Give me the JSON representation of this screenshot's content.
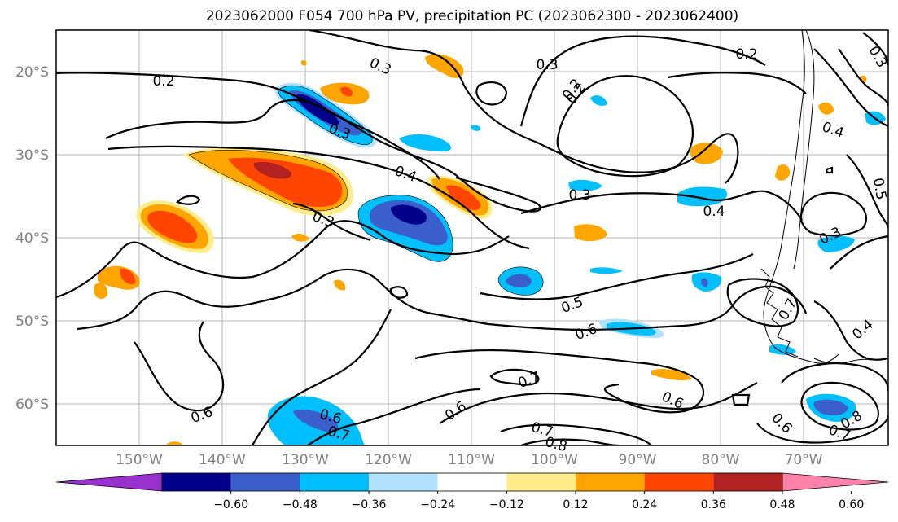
{
  "title": "2023062000 F054 700 hPa PV, precipitation PC (2023062300 - 2023062400)",
  "lat_labels": [
    "20°S",
    "30°S",
    "40°S",
    "50°S",
    "60°S"
  ],
  "lon_labels": [
    "150°W",
    "140°W",
    "130°W",
    "120°W",
    "110°W",
    "100°W",
    "90°W",
    "80°W",
    "70°W"
  ],
  "contour_labels": [
    "0.2",
    "0.3",
    "0.3",
    "0.2",
    "0.2",
    "0.3",
    "0.4",
    "0.3",
    "0.3",
    "0.4",
    "0.3",
    "0.4",
    "0.5",
    "0.3",
    "0.5",
    "0.6",
    "0.7",
    "0.4",
    "0.7",
    "0.6",
    "0.6",
    "0.6",
    "0.6",
    "0.7",
    "0.7",
    "0.8",
    "0.6",
    "0.7",
    "0.8",
    "0.2"
  ],
  "colorbar": {
    "tick_labels": [
      "−0.60",
      "−0.48",
      "−0.36",
      "−0.24",
      "−0.12",
      "0.12",
      "0.24",
      "0.36",
      "0.48",
      "0.60"
    ],
    "colors": [
      "#9932cc",
      "#00008b",
      "#3a5fcd",
      "#00bfff",
      "#b0e2ff",
      "#ffffff",
      "#ffec8b",
      "#ffa500",
      "#ff4500",
      "#b22222",
      "#ff82ab"
    ]
  }
}
